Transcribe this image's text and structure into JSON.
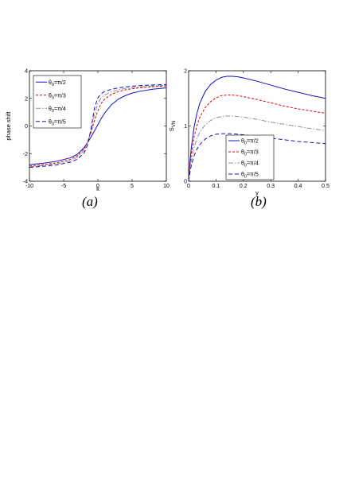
{
  "panels": {
    "a": {
      "caption": "(a)"
    },
    "b": {
      "caption": "(b)"
    }
  },
  "chart_data": [
    {
      "id": "a",
      "type": "line",
      "title": "",
      "xlabel": "k",
      "ylabel": "phase shift",
      "xlim": [
        -10,
        10
      ],
      "ylim": [
        -4,
        4
      ],
      "xticks": [
        "-10",
        "-5",
        "0",
        "5",
        "10"
      ],
      "yticks": [
        "-4",
        "-2",
        "0",
        "2",
        "4"
      ],
      "legend_position": "top-left",
      "series": [
        {
          "name": "θ0=π/2",
          "color": "#1010c0",
          "dash": "solid",
          "x": [
            -10,
            -8,
            -6,
            -4,
            -3,
            -2,
            -1.5,
            -1,
            -0.5,
            0,
            0.5,
            1,
            2,
            3,
            4,
            5,
            6,
            8,
            10
          ],
          "y": [
            -2.8,
            -2.7,
            -2.55,
            -2.3,
            -2.05,
            -1.55,
            -1.2,
            -0.8,
            -0.35,
            0.1,
            0.55,
            0.95,
            1.55,
            1.95,
            2.2,
            2.38,
            2.5,
            2.66,
            2.76
          ]
        },
        {
          "name": "θ0=π/3",
          "color": "#e00000",
          "dash": "3,2",
          "x": [
            -10,
            -8,
            -6,
            -4,
            -3,
            -2,
            -1.5,
            -1,
            -0.5,
            0,
            0.5,
            1,
            2,
            3,
            4,
            5,
            6,
            8,
            10
          ],
          "y": [
            -2.9,
            -2.8,
            -2.66,
            -2.42,
            -2.15,
            -1.65,
            -1.15,
            -0.45,
            0.4,
            1.1,
            1.65,
            1.95,
            2.3,
            2.5,
            2.62,
            2.7,
            2.76,
            2.85,
            2.9
          ]
        },
        {
          "name": "θ0=π/4",
          "color": "#909090",
          "dash": "6,2,1.5,2",
          "x": [
            -10,
            -8,
            -6,
            -4,
            -3,
            -2,
            -1.5,
            -1,
            -0.5,
            0,
            0.5,
            1,
            2,
            3,
            4,
            5,
            6,
            8,
            10
          ],
          "y": [
            -2.95,
            -2.86,
            -2.74,
            -2.52,
            -2.26,
            -1.78,
            -1.2,
            -0.3,
            0.85,
            1.65,
            2.05,
            2.25,
            2.48,
            2.62,
            2.72,
            2.78,
            2.83,
            2.9,
            2.95
          ]
        },
        {
          "name": "θ0=π/5",
          "color": "#1010c0",
          "dash": "5,3",
          "x": [
            -10,
            -8,
            -6,
            -4,
            -3,
            -2,
            -1.5,
            -1,
            -0.5,
            0,
            0.5,
            1,
            2,
            3,
            4,
            5,
            6,
            8,
            10
          ],
          "y": [
            -3.0,
            -2.92,
            -2.82,
            -2.62,
            -2.4,
            -1.95,
            -1.35,
            -0.2,
            1.3,
            2.05,
            2.35,
            2.5,
            2.66,
            2.76,
            2.83,
            2.88,
            2.92,
            2.97,
            3.0
          ]
        }
      ]
    },
    {
      "id": "b",
      "type": "line",
      "title": "",
      "xlabel": "γ",
      "ylabel": "S_VN",
      "ylabel_main": "S",
      "ylabel_sub": "VN",
      "xlim": [
        0,
        0.5
      ],
      "ylim": [
        0,
        2
      ],
      "xticks": [
        "0",
        "0.1",
        "0.2",
        "0.3",
        "0.4",
        "0.5"
      ],
      "yticks": [
        "0",
        "1",
        "2"
      ],
      "legend_position": "bottom-right",
      "series": [
        {
          "name": "θ0=π/2",
          "color": "#1010c0",
          "dash": "solid",
          "x": [
            0,
            0.005,
            0.01,
            0.02,
            0.03,
            0.04,
            0.06,
            0.08,
            0.1,
            0.12,
            0.14,
            0.16,
            0.18,
            0.2,
            0.25,
            0.3,
            0.35,
            0.4,
            0.45,
            0.5
          ],
          "y": [
            0,
            0.35,
            0.62,
            0.98,
            1.22,
            1.4,
            1.62,
            1.75,
            1.83,
            1.88,
            1.9,
            1.9,
            1.89,
            1.87,
            1.81,
            1.74,
            1.67,
            1.61,
            1.55,
            1.5
          ]
        },
        {
          "name": "θ0=π/3",
          "color": "#e00000",
          "dash": "3,2",
          "x": [
            0,
            0.005,
            0.01,
            0.02,
            0.03,
            0.04,
            0.06,
            0.08,
            0.1,
            0.12,
            0.14,
            0.16,
            0.18,
            0.2,
            0.25,
            0.3,
            0.35,
            0.4,
            0.45,
            0.5
          ],
          "y": [
            0,
            0.28,
            0.5,
            0.8,
            1.0,
            1.15,
            1.33,
            1.44,
            1.51,
            1.55,
            1.56,
            1.56,
            1.55,
            1.53,
            1.48,
            1.42,
            1.36,
            1.31,
            1.27,
            1.23
          ]
        },
        {
          "name": "θ0=π/4",
          "color": "#909090",
          "dash": "6,2,1.5,2",
          "x": [
            0,
            0.005,
            0.01,
            0.02,
            0.03,
            0.04,
            0.06,
            0.08,
            0.1,
            0.12,
            0.14,
            0.16,
            0.18,
            0.2,
            0.25,
            0.3,
            0.35,
            0.4,
            0.45,
            0.5
          ],
          "y": [
            0,
            0.21,
            0.38,
            0.61,
            0.77,
            0.88,
            1.02,
            1.1,
            1.15,
            1.17,
            1.18,
            1.18,
            1.17,
            1.16,
            1.12,
            1.07,
            1.03,
            0.99,
            0.95,
            0.92
          ]
        },
        {
          "name": "θ0=π/5",
          "color": "#1010c0",
          "dash": "5,3",
          "x": [
            0,
            0.005,
            0.01,
            0.02,
            0.03,
            0.04,
            0.06,
            0.08,
            0.1,
            0.12,
            0.14,
            0.16,
            0.18,
            0.2,
            0.25,
            0.3,
            0.35,
            0.4,
            0.45,
            0.5
          ],
          "y": [
            0,
            0.16,
            0.29,
            0.46,
            0.58,
            0.66,
            0.76,
            0.82,
            0.85,
            0.86,
            0.86,
            0.86,
            0.85,
            0.84,
            0.81,
            0.78,
            0.75,
            0.72,
            0.7,
            0.68
          ]
        }
      ]
    }
  ]
}
